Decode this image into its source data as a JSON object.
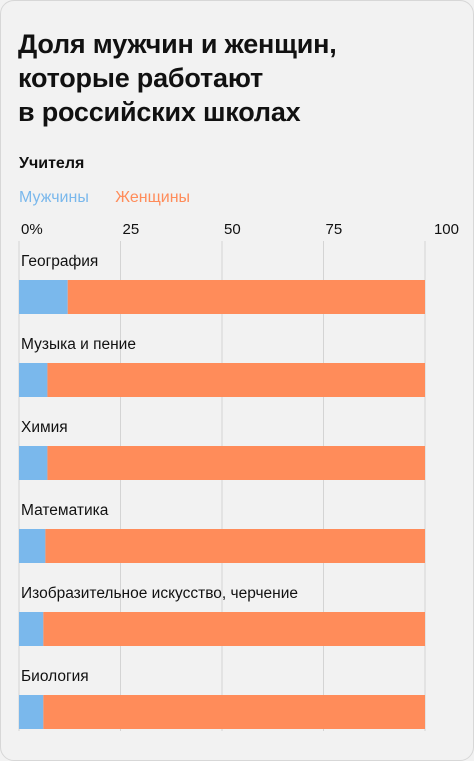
{
  "title": "Доля мужчин и женщин,\nкоторые работают\nв российских школах",
  "chart_data": {
    "type": "bar",
    "stacked": true,
    "orientation": "horizontal",
    "subtitle": "Учителя",
    "legend_position": "top-left",
    "series": [
      {
        "name": "Мужчины",
        "color": "#7ab8ec",
        "values": [
          12,
          7,
          7,
          6.5,
          6,
          6
        ]
      },
      {
        "name": "Женщины",
        "color": "#ff8c5a",
        "values": [
          88,
          93,
          93,
          93.5,
          94,
          94
        ]
      }
    ],
    "categories": [
      "География",
      "Музыка и пение",
      "Химия",
      "Математика",
      "Изобразительное искусство, черчение",
      "Биология"
    ],
    "ticks": [
      "0%",
      "25",
      "50",
      "75",
      "100"
    ],
    "xlim": [
      0,
      100
    ],
    "grid": true
  }
}
